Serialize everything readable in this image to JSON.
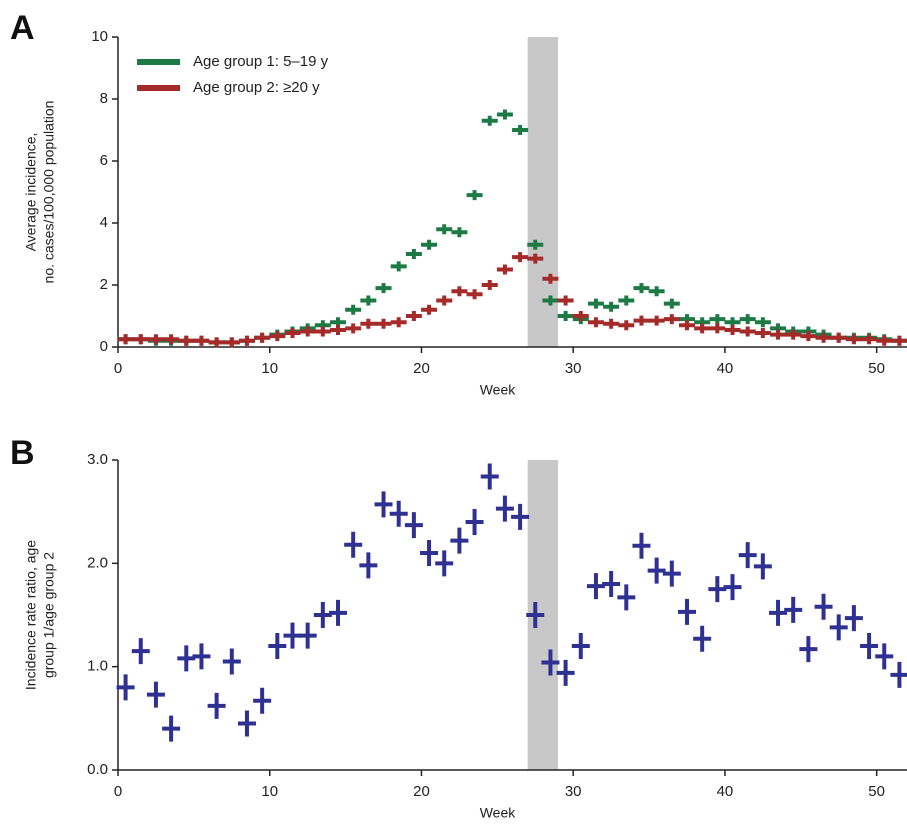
{
  "chart_data": [
    {
      "type": "scatter",
      "panel": "A",
      "xlabel": "Week",
      "ylabel": [
        "Average incidence,",
        "no. cases/100,000 population"
      ],
      "xlim": [
        0,
        52
      ],
      "ylim": [
        0,
        10
      ],
      "xticks": [
        0,
        10,
        20,
        30,
        40,
        50
      ],
      "yticks": [
        0,
        2,
        4,
        6,
        8,
        10
      ],
      "shade": [
        27,
        29
      ],
      "shade_color": "#c8c8c8",
      "legend": "upper left",
      "x": [
        0.5,
        1.5,
        2.5,
        3.5,
        4.5,
        5.5,
        6.5,
        7.5,
        8.5,
        9.5,
        10.5,
        11.5,
        12.5,
        13.5,
        14.5,
        15.5,
        16.5,
        17.5,
        18.5,
        19.5,
        20.5,
        21.5,
        22.5,
        23.5,
        24.5,
        25.5,
        26.5,
        27.5,
        28.5,
        29.5,
        30.5,
        31.5,
        32.5,
        33.5,
        34.5,
        35.5,
        36.5,
        37.5,
        38.5,
        39.5,
        40.5,
        41.5,
        42.5,
        43.5,
        44.5,
        45.5,
        46.5,
        47.5,
        48.5,
        49.5,
        50.5,
        51.5
      ],
      "series": [
        {
          "name": "Age group 1: 5–19 y",
          "color": "#1e7a45",
          "values": [
            0.25,
            0.25,
            0.2,
            0.2,
            0.2,
            0.2,
            0.15,
            0.15,
            0.2,
            0.3,
            0.4,
            0.5,
            0.6,
            0.7,
            0.8,
            1.2,
            1.5,
            1.9,
            2.6,
            3.0,
            3.3,
            3.8,
            3.7,
            4.9,
            7.3,
            7.5,
            7.0,
            3.3,
            1.5,
            1.0,
            0.9,
            1.4,
            1.3,
            1.5,
            1.9,
            1.8,
            1.4,
            0.9,
            0.8,
            0.9,
            0.8,
            0.9,
            0.8,
            0.6,
            0.5,
            0.5,
            0.4,
            0.3,
            0.3,
            0.3,
            0.25,
            0.2
          ]
        },
        {
          "name": "Age group 2: ≥20 y",
          "color": "#a52a2a",
          "values": [
            0.25,
            0.25,
            0.25,
            0.25,
            0.2,
            0.2,
            0.15,
            0.15,
            0.2,
            0.3,
            0.35,
            0.45,
            0.5,
            0.5,
            0.55,
            0.6,
            0.75,
            0.75,
            0.8,
            1.0,
            1.2,
            1.5,
            1.8,
            1.7,
            2.0,
            2.5,
            2.9,
            2.85,
            2.2,
            1.5,
            1.0,
            0.8,
            0.75,
            0.7,
            0.85,
            0.85,
            0.9,
            0.7,
            0.6,
            0.6,
            0.55,
            0.5,
            0.45,
            0.4,
            0.4,
            0.35,
            0.3,
            0.3,
            0.25,
            0.25,
            0.2,
            0.2
          ]
        }
      ]
    },
    {
      "type": "scatter",
      "panel": "B",
      "xlabel": "Week",
      "ylabel": [
        "Incidence rate ratio, age",
        "group 1/age group 2"
      ],
      "xlim": [
        0,
        52
      ],
      "ylim": [
        0,
        3
      ],
      "xticks": [
        0,
        10,
        20,
        30,
        40,
        50
      ],
      "yticks": [
        {
          "value": 0,
          "label": "0.0"
        },
        {
          "value": 1,
          "label": "1.0"
        },
        {
          "value": 2,
          "label": "2.0"
        },
        {
          "value": 3,
          "label": "3.0"
        }
      ],
      "shade": [
        27,
        29
      ],
      "shade_color": "#c8c8c8",
      "x": [
        0.5,
        1.5,
        2.5,
        3.5,
        4.5,
        5.5,
        6.5,
        7.5,
        8.5,
        9.5,
        10.5,
        11.5,
        12.5,
        13.5,
        14.5,
        15.5,
        16.5,
        17.5,
        18.5,
        19.5,
        20.5,
        21.5,
        22.5,
        23.5,
        24.5,
        25.5,
        26.5,
        27.5,
        28.5,
        29.5,
        30.5,
        31.5,
        32.5,
        33.5,
        34.5,
        35.5,
        36.5,
        37.5,
        38.5,
        39.5,
        40.5,
        41.5,
        42.5,
        43.5,
        44.5,
        45.5,
        46.5,
        47.5,
        48.5,
        49.5,
        50.5,
        51.5
      ],
      "series": [
        {
          "color": "#2e3192",
          "values": [
            0.8,
            1.15,
            0.73,
            0.4,
            1.08,
            1.1,
            0.62,
            1.05,
            0.45,
            0.67,
            1.2,
            1.3,
            1.3,
            1.5,
            1.52,
            2.18,
            1.98,
            2.57,
            2.48,
            2.37,
            2.1,
            2.0,
            2.22,
            2.4,
            2.84,
            2.53,
            2.45,
            1.5,
            1.04,
            0.94,
            1.2,
            1.78,
            1.8,
            1.67,
            2.17,
            1.93,
            1.9,
            1.53,
            1.27,
            1.75,
            1.77,
            2.08,
            1.97,
            1.52,
            1.55,
            1.17,
            1.58,
            1.38,
            1.47,
            1.2,
            1.1,
            0.92
          ]
        }
      ]
    }
  ]
}
